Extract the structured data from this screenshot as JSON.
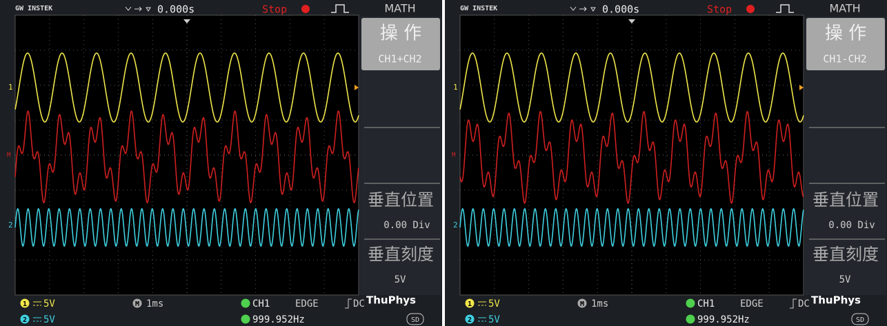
{
  "screens": [
    {
      "brand": "GW INSTEK",
      "timebase_offset": "0.000s",
      "run_state": "Stop",
      "menu_title": "MATH",
      "menu_op_label": "操 作",
      "menu_op_value": "CH1+CH2",
      "vpos_label": "垂直位置",
      "vpos_value": "0.00 Div",
      "vscale_label": "垂直刻度",
      "vscale_value": "5V",
      "watermark": "ThuPhys",
      "ch1_marker": "1",
      "ch2_marker": "2",
      "math_marker": "M",
      "ch1_scale": "5V",
      "ch2_scale": "5V",
      "timebase": "1ms",
      "trigger_source": "CH1",
      "trigger_type": "EDGE",
      "trigger_coupling": "DC",
      "frequency": "999.952Hz",
      "storage": "SD"
    },
    {
      "brand": "GW INSTEK",
      "timebase_offset": "0.000s",
      "run_state": "Stop",
      "menu_title": "MATH",
      "menu_op_label": "操 作",
      "menu_op_value": "CH1-CH2",
      "vpos_label": "垂直位置",
      "vpos_value": "0.00 Div",
      "vscale_label": "垂直刻度",
      "vscale_value": "5V",
      "watermark": "ThuPhys",
      "ch1_marker": "1",
      "ch2_marker": "2",
      "math_marker": "M",
      "ch1_scale": "5V",
      "ch2_scale": "5V",
      "timebase": "1ms",
      "trigger_source": "CH1",
      "trigger_type": "EDGE",
      "trigger_coupling": "DC",
      "frequency": "999.952Hz",
      "storage": "SD"
    }
  ]
}
